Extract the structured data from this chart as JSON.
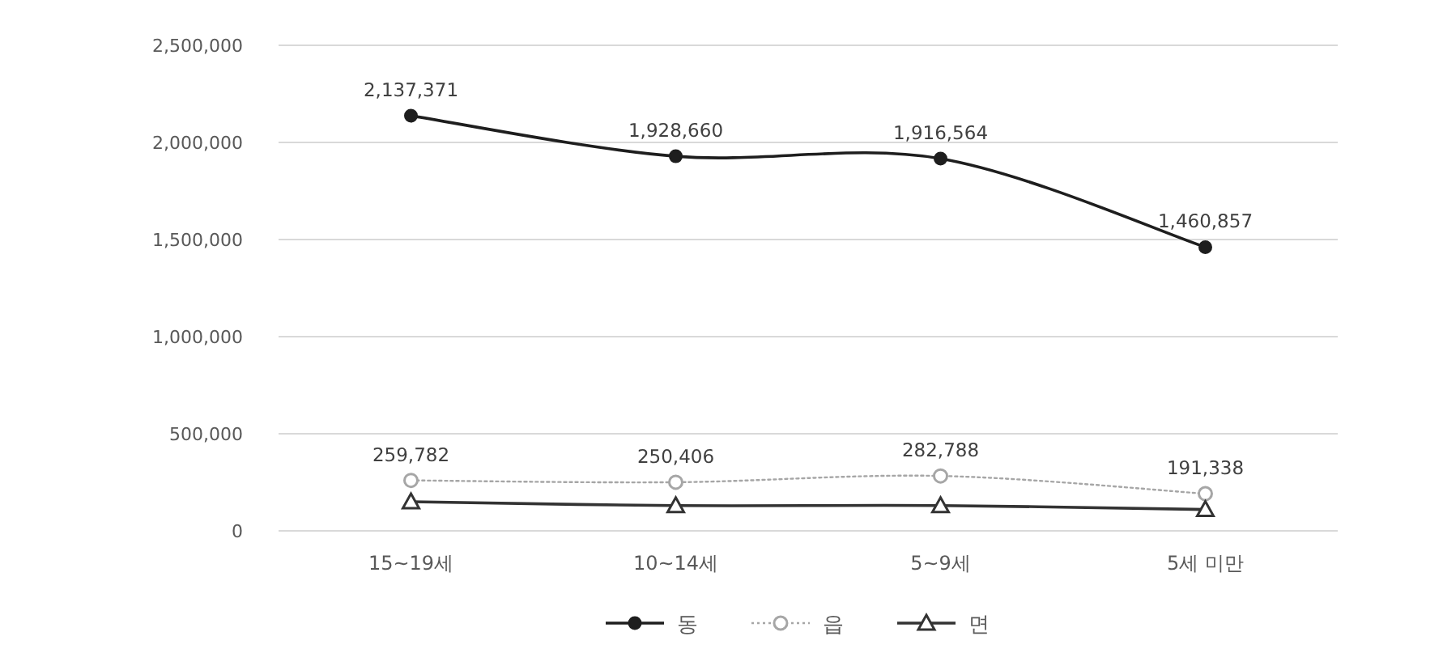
{
  "chart_data": {
    "type": "line",
    "categories": [
      "15~19세",
      "10~14세",
      "5~9세",
      "5세 미만"
    ],
    "series": [
      {
        "name": "동",
        "color": "#1e1e1e",
        "marker": "circle",
        "line_style": "solid",
        "values": [
          2137371,
          1928660,
          1916564,
          1460857
        ],
        "value_labels": [
          "2,137,371",
          "1,928,660",
          "1,916,564",
          "1,460,857"
        ]
      },
      {
        "name": "읍",
        "color": "#a6a6a6",
        "marker": "circle",
        "line_style": "dotted",
        "values": [
          259782,
          250406,
          282788,
          191338
        ],
        "value_labels": [
          "259,782",
          "250,406",
          "282,788",
          "191,338"
        ]
      },
      {
        "name": "면",
        "color": "#333333",
        "marker": "triangle",
        "line_style": "solid",
        "values": [
          150000,
          130000,
          130000,
          110000
        ]
      }
    ],
    "ylim": [
      0,
      2500000
    ],
    "yticks": [
      {
        "value": 0,
        "label": "0"
      },
      {
        "value": 500000,
        "label": "500,000"
      },
      {
        "value": 1000000,
        "label": "1,000,000"
      },
      {
        "value": 1500000,
        "label": "1,500,000"
      },
      {
        "value": 2000000,
        "label": "2,000,000"
      },
      {
        "value": 2500000,
        "label": "2,500,000"
      }
    ],
    "grid": "y",
    "legend": "bottom"
  }
}
